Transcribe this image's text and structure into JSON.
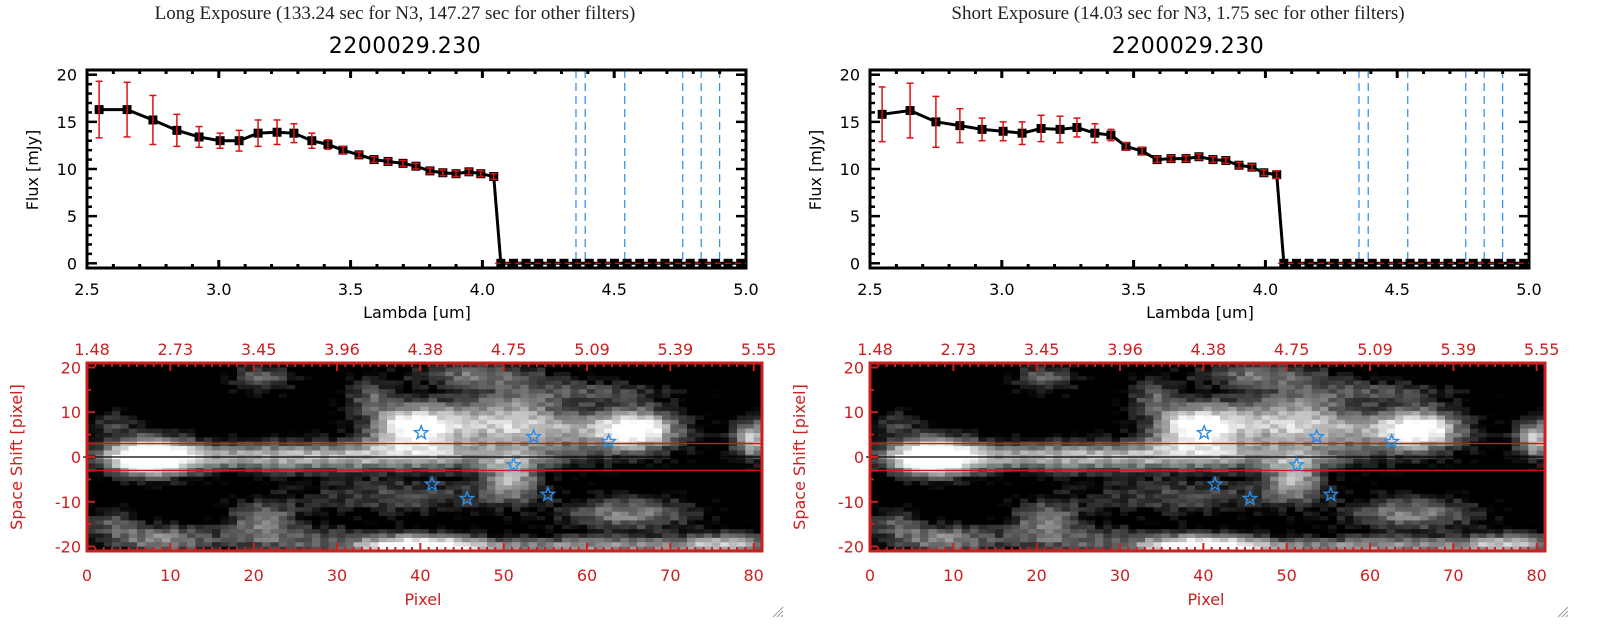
{
  "panels": [
    {
      "id": "long",
      "title": "Long Exposure (133.24 sec for N3, 147.27 sec for other filters)",
      "object_id": "2200029.230"
    },
    {
      "id": "short",
      "title": "Short Exposure (14.03 sec for N3, 1.75 sec for other filters)",
      "object_id": "2200029.230"
    }
  ],
  "colors": {
    "line": "#000000",
    "errorbar": "#e01010",
    "filter_lines": "#2a8be8",
    "zero_line": "#e01010",
    "image_axes": "#cc1f1f",
    "stars": "#2a8be8",
    "aperture": "#e01010"
  },
  "chart_data": [
    {
      "type": "line",
      "title": "2200029.230",
      "xlabel": "Lambda [um]",
      "ylabel": "Flux [mJy]",
      "xlim": [
        2.5,
        5.0
      ],
      "ylim": [
        -0.5,
        20.5
      ],
      "xticks": [
        "2.5",
        "3.0",
        "3.5",
        "4.0",
        "4.5",
        "5.0"
      ],
      "xtick_values": [
        2.5,
        3.0,
        3.5,
        4.0,
        4.5,
        5.0
      ],
      "yticks": [
        "0",
        "5",
        "10",
        "15",
        "20"
      ],
      "ytick_values": [
        0,
        5,
        10,
        15,
        20
      ],
      "filter_lines_um": [
        4.355,
        4.39,
        4.54,
        4.76,
        4.83,
        4.9
      ],
      "series": [
        {
          "name": "Flux",
          "x": [
            2.546,
            2.652,
            2.75,
            2.841,
            2.925,
            3.005,
            3.077,
            3.149,
            3.221,
            3.285,
            3.353,
            3.414,
            3.471,
            3.532,
            3.589,
            3.642,
            3.699,
            3.748,
            3.801,
            3.85,
            3.9,
            3.949,
            3.994,
            4.043
          ],
          "y": [
            16.3,
            16.3,
            15.2,
            14.1,
            13.4,
            13.0,
            13.0,
            13.8,
            13.9,
            13.8,
            13.0,
            12.6,
            12.0,
            11.5,
            11.0,
            10.8,
            10.6,
            10.3,
            9.8,
            9.6,
            9.5,
            9.7,
            9.5,
            9.2
          ],
          "yerr": [
            3.0,
            2.9,
            2.6,
            1.7,
            1.1,
            0.8,
            1.1,
            1.4,
            1.3,
            1.0,
            0.8,
            0.5,
            0.4,
            0.3,
            0.3,
            0.3,
            0.3,
            0.3,
            0.3,
            0.3,
            0.3,
            0.3,
            0.3,
            0.3
          ],
          "zero_x_start": 4.07,
          "zero_x_end": 4.98,
          "zero_count": 20
        }
      ]
    },
    {
      "type": "line",
      "title": "2200029.230",
      "xlabel": "Lambda [um]",
      "ylabel": "Flux [mJy]",
      "xlim": [
        2.5,
        5.0
      ],
      "ylim": [
        -0.5,
        20.5
      ],
      "xticks": [
        "2.5",
        "3.0",
        "3.5",
        "4.0",
        "4.5",
        "5.0"
      ],
      "xtick_values": [
        2.5,
        3.0,
        3.5,
        4.0,
        4.5,
        5.0
      ],
      "yticks": [
        "0",
        "5",
        "10",
        "15",
        "20"
      ],
      "ytick_values": [
        0,
        5,
        10,
        15,
        20
      ],
      "filter_lines_um": [
        4.355,
        4.39,
        4.54,
        4.76,
        4.83,
        4.9
      ],
      "series": [
        {
          "name": "Flux",
          "x": [
            2.546,
            2.652,
            2.75,
            2.841,
            2.925,
            3.005,
            3.077,
            3.149,
            3.221,
            3.285,
            3.353,
            3.414,
            3.471,
            3.532,
            3.589,
            3.642,
            3.699,
            3.748,
            3.801,
            3.85,
            3.9,
            3.949,
            3.994,
            4.043
          ],
          "y": [
            15.8,
            16.2,
            15.0,
            14.6,
            14.2,
            14.0,
            13.8,
            14.3,
            14.2,
            14.4,
            13.8,
            13.6,
            12.4,
            11.9,
            11.0,
            11.1,
            11.1,
            11.3,
            11.0,
            10.9,
            10.4,
            10.2,
            9.6,
            9.4
          ],
          "yerr": [
            2.9,
            2.9,
            2.7,
            1.8,
            1.2,
            1.0,
            1.2,
            1.4,
            1.4,
            1.0,
            1.0,
            0.6,
            0.4,
            0.4,
            0.3,
            0.3,
            0.3,
            0.3,
            0.3,
            0.3,
            0.3,
            0.3,
            0.3,
            0.4
          ],
          "zero_x_start": 4.07,
          "zero_x_end": 4.98,
          "zero_count": 20
        }
      ]
    },
    {
      "type": "heatmap",
      "xlabel": "Pixel",
      "ylabel": "Space Shift [pixel]",
      "xlim": [
        0,
        81
      ],
      "ylim": [
        -21,
        21
      ],
      "xticks": [
        "0",
        "10",
        "20",
        "30",
        "40",
        "50",
        "60",
        "70",
        "80"
      ],
      "xtick_values": [
        0,
        10,
        20,
        30,
        40,
        50,
        60,
        70,
        80
      ],
      "yticks": [
        "20",
        "10",
        "0",
        "-10",
        "-20"
      ],
      "ytick_values": [
        20,
        10,
        0,
        -10,
        -20
      ],
      "top_axis_label_values": [
        0,
        10,
        20,
        30,
        40,
        50,
        60,
        70,
        80
      ],
      "top_axis_labels_um": [
        "1.48",
        "2.73",
        "3.45",
        "3.96",
        "4.38",
        "4.75",
        "5.09",
        "5.39",
        "5.55"
      ],
      "aperture_rows": [
        3,
        -3
      ],
      "center_row": 0,
      "stars": [
        {
          "x": 40.1,
          "y": 5.4
        },
        {
          "x": 53.6,
          "y": 4.5
        },
        {
          "x": 62.6,
          "y": 3.4
        },
        {
          "x": 51.2,
          "y": -1.8
        },
        {
          "x": 41.4,
          "y": -6.1
        },
        {
          "x": 45.6,
          "y": -9.3
        },
        {
          "x": 55.3,
          "y": -8.4
        }
      ]
    }
  ]
}
